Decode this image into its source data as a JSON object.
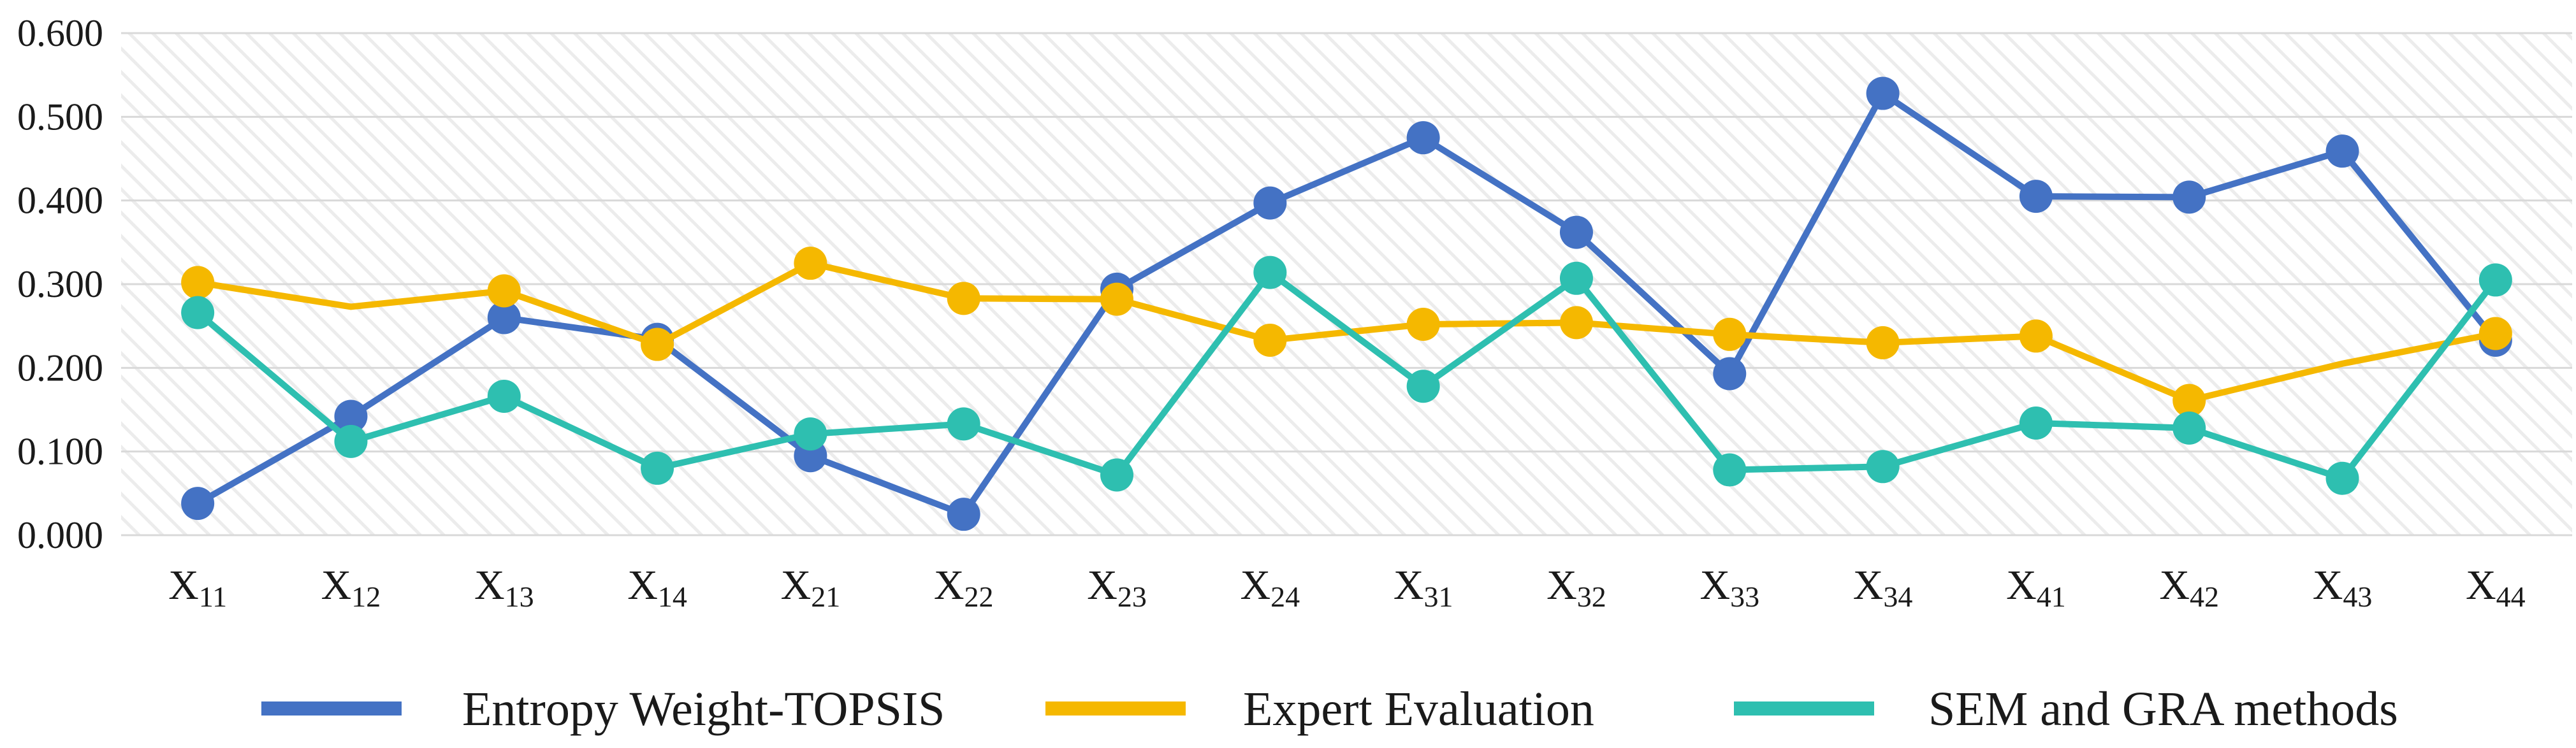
{
  "chart_data": {
    "type": "line",
    "categories": [
      {
        "main": "X",
        "sub": "11"
      },
      {
        "main": "X",
        "sub": "12"
      },
      {
        "main": "X",
        "sub": "13"
      },
      {
        "main": "X",
        "sub": "14"
      },
      {
        "main": "X",
        "sub": "21"
      },
      {
        "main": "X",
        "sub": "22"
      },
      {
        "main": "X",
        "sub": "23"
      },
      {
        "main": "X",
        "sub": "24"
      },
      {
        "main": "X",
        "sub": "31"
      },
      {
        "main": "X",
        "sub": "32"
      },
      {
        "main": "X",
        "sub": "33"
      },
      {
        "main": "X",
        "sub": "34"
      },
      {
        "main": "X",
        "sub": "41"
      },
      {
        "main": "X",
        "sub": "42"
      },
      {
        "main": "X",
        "sub": "43"
      },
      {
        "main": "X",
        "sub": "44"
      }
    ],
    "y_ticks": [
      "0.000",
      "0.100",
      "0.200",
      "0.300",
      "0.400",
      "0.500",
      "0.600"
    ],
    "ylim": [
      0,
      0.6
    ],
    "grid": true,
    "background_pattern": "diagonal-hatch",
    "legend_position": "bottom",
    "series": [
      {
        "name": "Entropy Weight-TOPSIS",
        "color": "#4472C4",
        "values": [
          0.038,
          0.142,
          0.26,
          0.234,
          0.095,
          0.025,
          0.294,
          0.397,
          0.475,
          0.362,
          0.193,
          0.528,
          0.405,
          0.404,
          0.459,
          0.233
        ],
        "markers": [
          true,
          true,
          true,
          true,
          true,
          true,
          true,
          true,
          true,
          true,
          true,
          true,
          true,
          true,
          true,
          true
        ]
      },
      {
        "name": "Expert Evaluation",
        "color": "#F5B800",
        "values": [
          0.302,
          0.273,
          0.292,
          0.228,
          0.325,
          0.283,
          0.282,
          0.233,
          0.252,
          0.254,
          0.24,
          0.23,
          0.238,
          0.161,
          0.205,
          0.241
        ],
        "markers": [
          true,
          false,
          true,
          true,
          true,
          true,
          true,
          true,
          true,
          true,
          true,
          true,
          true,
          true,
          false,
          true
        ]
      },
      {
        "name": "SEM and GRA methods",
        "color": "#2EBFB0",
        "values": [
          0.266,
          0.112,
          0.166,
          0.08,
          0.121,
          0.133,
          0.072,
          0.314,
          0.178,
          0.307,
          0.078,
          0.082,
          0.134,
          0.128,
          0.068,
          0.305
        ],
        "markers": [
          true,
          true,
          true,
          true,
          true,
          true,
          true,
          true,
          true,
          true,
          true,
          true,
          true,
          true,
          true,
          true
        ]
      }
    ]
  }
}
